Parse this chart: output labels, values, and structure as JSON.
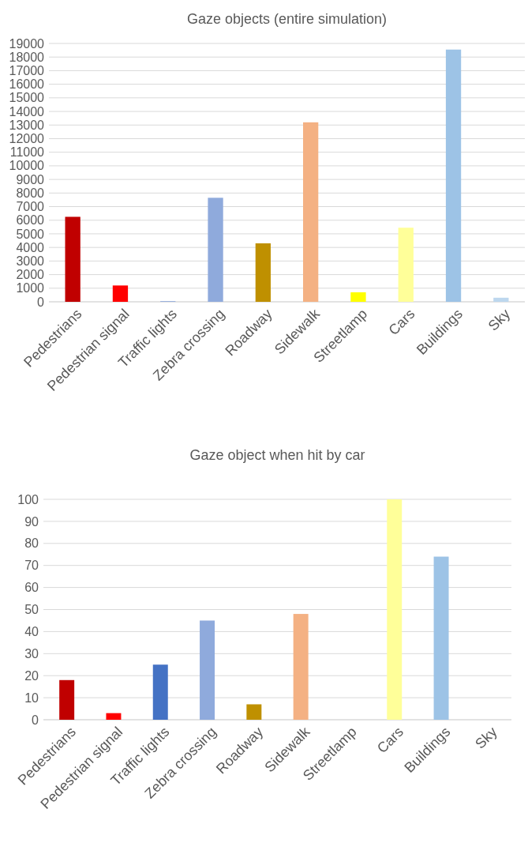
{
  "chart_data": [
    {
      "type": "bar",
      "title": "Gaze objects (entire simulation)",
      "categories": [
        "Pedestrians",
        "Pedestrian signal",
        "Traffic lights",
        "Zebra crossing",
        "Roadway",
        "Sidewalk",
        "Streetlamp",
        "Cars",
        "Buildings",
        "Sky"
      ],
      "values": [
        6250,
        1200,
        50,
        7650,
        4300,
        13200,
        700,
        5450,
        18550,
        300
      ],
      "colors": [
        "#c00000",
        "#ff0000",
        "#8faadc",
        "#8faadc",
        "#bf9000",
        "#f4b183",
        "#ffff00",
        "#ffff99",
        "#9dc3e6",
        "#bdd7ee"
      ],
      "ylim": [
        0,
        19000
      ],
      "yticks": [
        0,
        1000,
        2000,
        3000,
        4000,
        5000,
        6000,
        7000,
        8000,
        9000,
        10000,
        11000,
        12000,
        13000,
        14000,
        15000,
        16000,
        17000,
        18000,
        19000
      ],
      "grid": "y"
    },
    {
      "type": "bar",
      "title": "Gaze object when hit by car",
      "categories": [
        "Pedestrians",
        "Pedestrian signal",
        "Traffic lights",
        "Zebra crossing",
        "Roadway",
        "Sidewalk",
        "Streetlamp",
        "Cars",
        "Buildings",
        "Sky"
      ],
      "values": [
        18,
        3,
        25,
        45,
        7,
        48,
        0,
        100,
        74,
        0
      ],
      "colors": [
        "#c00000",
        "#ff0000",
        "#4472c4",
        "#8faadc",
        "#bf9000",
        "#f4b183",
        "#ffff00",
        "#ffff99",
        "#9dc3e6",
        "#bdd7ee"
      ],
      "ylim": [
        0,
        100
      ],
      "yticks": [
        0,
        10,
        20,
        30,
        40,
        50,
        60,
        70,
        80,
        90,
        100
      ],
      "grid": "y"
    }
  ]
}
